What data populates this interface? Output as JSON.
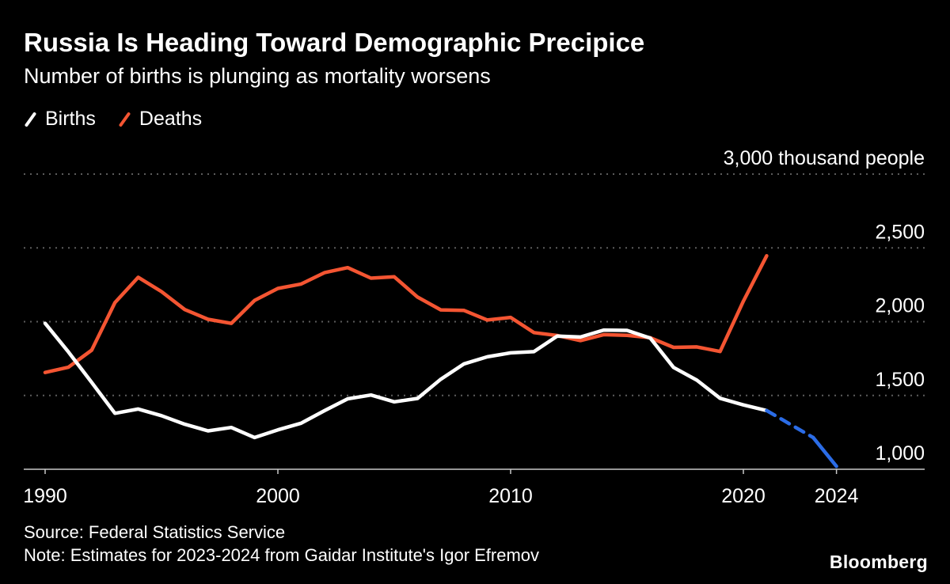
{
  "header": {
    "title": "Russia Is Heading Toward Demographic Precipice",
    "subtitle": "Number of births is plunging as mortality worsens"
  },
  "legend": {
    "items": [
      {
        "label": "Births",
        "color": "#ffffff"
      },
      {
        "label": "Deaths",
        "color": "#f45532"
      }
    ]
  },
  "footer": {
    "source": "Source: Federal Statistics Service",
    "note": "Note: Estimates for 2023-2024 from Gaidar Institute's Igor Efremov",
    "brand": "Bloomberg"
  },
  "chart_data": {
    "type": "line",
    "title": "Russia Is Heading Toward Demographic Precipice",
    "subtitle": "Number of births is plunging as mortality worsens",
    "unit": "thousand people",
    "x_min": 1990,
    "x_max": 2024,
    "ylim": [
      1000,
      3100
    ],
    "yticks": [
      1000,
      1500,
      2000,
      2500,
      3000
    ],
    "ytick_labels": [
      "1,000",
      "1,500",
      "2,000",
      "2,500",
      "3,000 thousand people"
    ],
    "xticks": [
      1990,
      2000,
      2010,
      2020,
      2024
    ],
    "xtick_labels": [
      "1990",
      "2000",
      "2010",
      "2020",
      "2024"
    ],
    "grid": "horizontal-dotted",
    "legend_position": "top-left",
    "colors": {
      "grid": "#5c5c5c",
      "axis": "#c9c9c9",
      "estimate": "#2b6ce6"
    },
    "series": [
      {
        "id": "deaths",
        "name": "Deaths",
        "color": "#f45532",
        "style": "solid",
        "width": 4.5,
        "x_start": 1990,
        "values": [
          1656,
          1691,
          1807,
          2129,
          2301,
          2204,
          2082,
          2016,
          1989,
          2144,
          2225,
          2255,
          2332,
          2366,
          2295,
          2304,
          2167,
          2080,
          2076,
          2011,
          2029,
          1926,
          1906,
          1872,
          1912,
          1908,
          1891,
          1826,
          1829,
          1798,
          2139,
          2446
        ]
      },
      {
        "id": "births",
        "name": "Births",
        "color": "#ffffff",
        "style": "solid",
        "width": 4.5,
        "x_start": 1990,
        "values": [
          1989,
          1795,
          1588,
          1379,
          1408,
          1363,
          1305,
          1260,
          1283,
          1215,
          1267,
          1312,
          1397,
          1477,
          1503,
          1457,
          1480,
          1610,
          1714,
          1762,
          1789,
          1797,
          1902,
          1896,
          1943,
          1941,
          1889,
          1690,
          1604,
          1481,
          1436,
          1398
        ]
      },
      {
        "id": "births-estimate-dashed",
        "name": "Births estimate (projection start)",
        "color": "#2b6ce6",
        "style": "dashed",
        "width": 4.5,
        "x_start": 2021,
        "values": [
          1398,
          1306,
          1215
        ]
      },
      {
        "id": "births-estimate-solid",
        "name": "Births estimate 2023-2024",
        "color": "#2b6ce6",
        "style": "solid",
        "width": 4.5,
        "x_start": 2023,
        "values": [
          1215,
          1020
        ]
      }
    ]
  }
}
